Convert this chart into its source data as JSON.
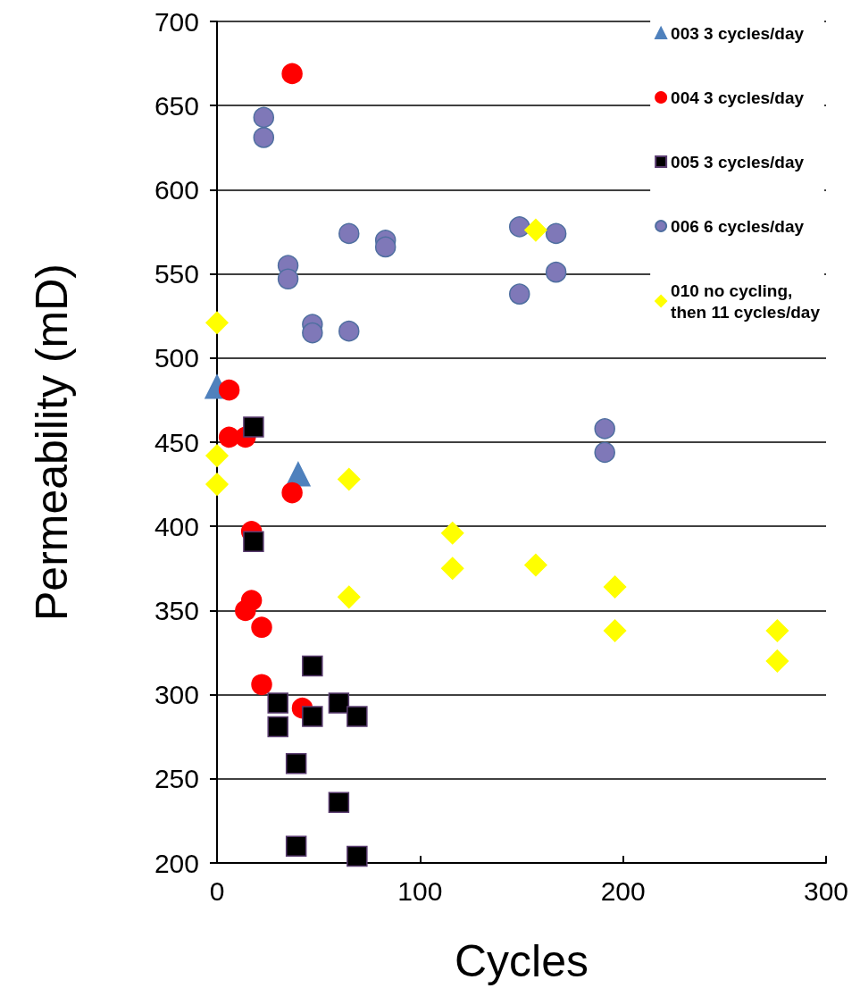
{
  "chart_data": {
    "type": "scatter",
    "xlabel": "Cycles",
    "ylabel": "Permeability (mD)",
    "xlim": [
      0,
      300
    ],
    "xticks": [
      0,
      100,
      200,
      300
    ],
    "ylim": [
      200,
      700
    ],
    "yticks": [
      200,
      250,
      300,
      350,
      400,
      450,
      500,
      550,
      600,
      650,
      700
    ],
    "grid": "y",
    "legend": "top right",
    "series": [
      {
        "name": "003 3 cycles/day",
        "color": "#4f81bd",
        "marker": "triangle",
        "x": [
          0,
          40
        ],
        "values": [
          483,
          431
        ]
      },
      {
        "name": "004 3 cycles/day",
        "color": "#ff0000",
        "marker": "circle",
        "x": [
          37,
          6,
          6,
          14,
          37,
          17,
          17,
          14,
          22,
          22,
          42
        ],
        "values": [
          669,
          481,
          453,
          453,
          420,
          397,
          356,
          350,
          340,
          306,
          292
        ]
      },
      {
        "name": "005 3 cycles/day",
        "color": "#000000",
        "marker": "square",
        "x": [
          18,
          18,
          47,
          30,
          30,
          47,
          60,
          69,
          39,
          60,
          39,
          69
        ],
        "values": [
          459,
          391,
          317,
          295,
          281,
          287,
          295,
          287,
          259,
          236,
          210,
          204
        ]
      },
      {
        "name": "006 6 cycles/day",
        "color": "#7f78b8",
        "marker": "circle",
        "x": [
          23,
          23,
          65,
          83,
          83,
          35,
          35,
          47,
          47,
          65,
          149,
          167,
          167,
          149,
          191,
          191
        ],
        "values": [
          643,
          631,
          574,
          570,
          566,
          555,
          547,
          520,
          515,
          516,
          578,
          574,
          551,
          538,
          458,
          444
        ]
      },
      {
        "name": "010 no cycling,\nthen 11 cycles/day",
        "color": "#ffff00",
        "marker": "diamond",
        "x": [
          0,
          0,
          0,
          65,
          65,
          157,
          116,
          116,
          157,
          196,
          196,
          276,
          276
        ],
        "values": [
          521,
          442,
          425,
          428,
          358,
          576,
          396,
          375,
          377,
          364,
          338,
          338,
          320
        ]
      }
    ]
  }
}
